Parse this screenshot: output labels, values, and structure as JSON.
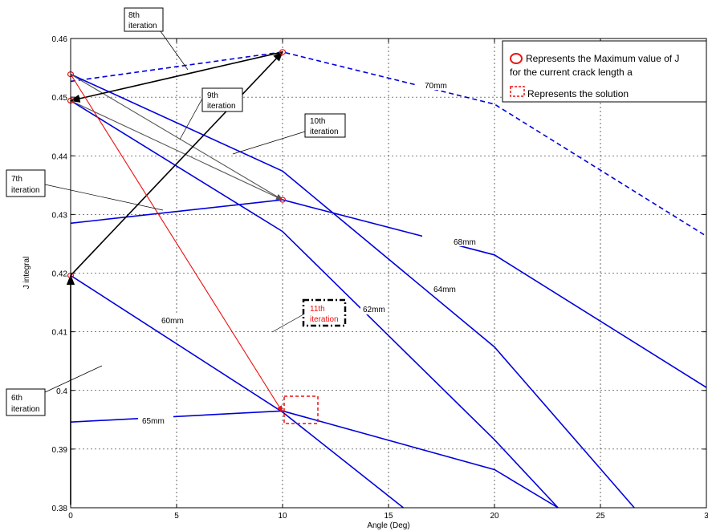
{
  "chart_data": {
    "type": "line",
    "title": "",
    "xlabel": "Angle (Deg)",
    "ylabel": "J integral",
    "xlim": [
      0,
      30
    ],
    "ylim": [
      0.38,
      0.46
    ],
    "x_ticks": [
      "0",
      "5",
      "10",
      "15",
      "20",
      "25",
      "3"
    ],
    "y_ticks": [
      "0.38",
      "0.39",
      "0.4",
      "0.41",
      "0.42",
      "0.43",
      "0.44",
      "0.45",
      "0.46"
    ],
    "grid": true,
    "series": [
      {
        "name": "70mm",
        "style": "dashed",
        "x": [
          0,
          10,
          20,
          30
        ],
        "y": [
          0.4527,
          0.4577,
          0.4488,
          0.4263
        ]
      },
      {
        "name": "68mm",
        "style": "solid",
        "x": [
          0,
          10,
          20,
          30
        ],
        "y": [
          0.4285,
          0.4325,
          0.4231,
          0.4005
        ]
      },
      {
        "name": "64mm",
        "style": "solid",
        "x": [
          0,
          10,
          20,
          26.6
        ],
        "y": [
          0.4539,
          0.4374,
          0.4074,
          0.38
        ]
      },
      {
        "name": "62mm",
        "style": "solid",
        "x": [
          0,
          10,
          20,
          23
        ],
        "y": [
          0.4494,
          0.4271,
          0.3916,
          0.38
        ]
      },
      {
        "name": "60mm",
        "style": "solid",
        "x": [
          0,
          10,
          15.7
        ],
        "y": [
          0.4196,
          0.3963,
          0.38
        ]
      },
      {
        "name": "65mm",
        "style": "solid",
        "x": [
          0,
          10,
          20,
          23
        ],
        "y": [
          0.3946,
          0.3965,
          0.3865,
          0.38
        ]
      }
    ],
    "maxima_markers": [
      {
        "x": 0,
        "y": 0.4539
      },
      {
        "x": 0,
        "y": 0.4494
      },
      {
        "x": 0,
        "y": 0.4196
      },
      {
        "x": 10,
        "y": 0.4577
      },
      {
        "x": 10,
        "y": 0.4325
      }
    ],
    "solution": {
      "x": 10,
      "y": 0.3963
    },
    "iteration_arrows": [
      {
        "from": [
          0,
          0.4539
        ],
        "to": [
          10,
          0.4325
        ],
        "color": "#555555"
      },
      {
        "from": [
          0,
          0.4494
        ],
        "to": [
          10,
          0.4325
        ],
        "color": "#555555"
      },
      {
        "from": [
          0,
          0.3805
        ],
        "to": [
          0,
          0.4196
        ],
        "color": "#000000"
      },
      {
        "from": [
          0,
          0.4196
        ],
        "to": [
          10,
          0.4577
        ],
        "color": "#000000"
      },
      {
        "from": [
          10,
          0.4577
        ],
        "to": [
          0,
          0.4494
        ],
        "color": "#000000"
      },
      {
        "from": [
          0,
          0.4539
        ],
        "to": [
          10,
          0.3963
        ],
        "color": "#ee1111"
      }
    ],
    "annotations": [
      {
        "lines": [
          "6th",
          "iteration"
        ]
      },
      {
        "lines": [
          "7th",
          "iteration"
        ]
      },
      {
        "lines": [
          "8th",
          "iteration"
        ]
      },
      {
        "lines": [
          "9th",
          "iteration"
        ]
      },
      {
        "lines": [
          "10th",
          "iteration"
        ]
      },
      {
        "lines": [
          "11th",
          "iteration"
        ],
        "color": "#ee1111",
        "border": "dashdot"
      }
    ],
    "legend": {
      "position": "top-right",
      "entries": [
        {
          "marker": "red-circle",
          "text": [
            "Represents the Maximum value of J",
            "for the current crack  length  a"
          ]
        },
        {
          "marker": "red-dashed-square",
          "text": [
            "Represents the solution"
          ]
        }
      ]
    },
    "colors": {
      "series": "#0000dd",
      "marker": "#ee1111",
      "solution": "#ee1111",
      "arrow_dark": "#000000",
      "arrow_grey": "#555555"
    }
  }
}
